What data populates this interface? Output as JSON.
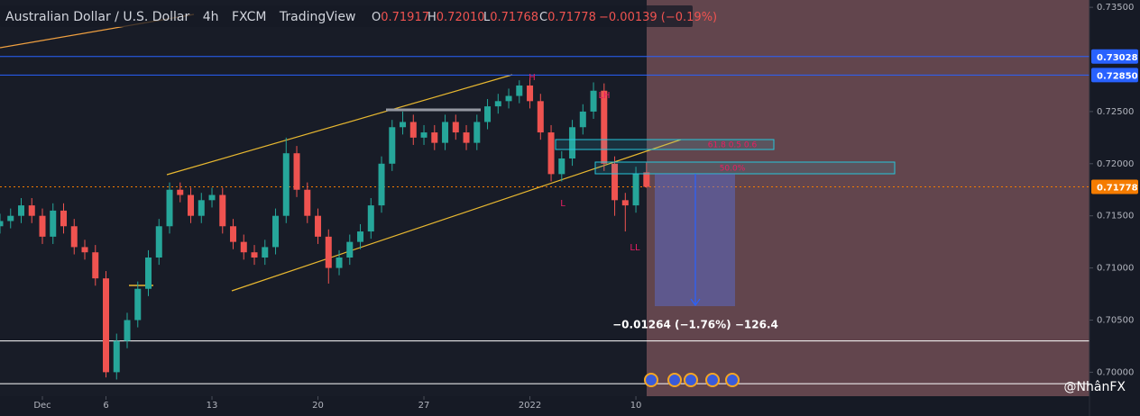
{
  "chart_data": {
    "type": "candlestick",
    "title": "Australian Dollar / U.S. Dollar",
    "interval": "4h",
    "exchange": "FXCM",
    "source": "TradingView",
    "ohlc_header": [
      {
        "key": "O",
        "text": "0.71917"
      },
      {
        "key": "H",
        "text": "0.72010"
      },
      {
        "key": "L",
        "text": "0.71768"
      },
      {
        "key": "C",
        "text": "0.71778"
      }
    ],
    "change_text": "−0.00139 (−0.19%)",
    "x": [
      -2,
      -1.5,
      -1,
      -0.5,
      0,
      0.5,
      1,
      1.5,
      2,
      2.5,
      3,
      3.5,
      4,
      4.5,
      5,
      5.5,
      6,
      6.5,
      7,
      7.5,
      8,
      8.5,
      9,
      9.5,
      10,
      10.5,
      11,
      11.5,
      12,
      12.5,
      13,
      13.5,
      14,
      14.5,
      15,
      15.5,
      16,
      16.5,
      17,
      17.5,
      18,
      18.5,
      19,
      19.5,
      20,
      20.5,
      21,
      21.5,
      22,
      22.5,
      23,
      23.5,
      24,
      24.5,
      25,
      25.5,
      26,
      26.5,
      27,
      27.5,
      28,
      28.5
    ],
    "open": [
      0.714,
      0.7145,
      0.715,
      0.716,
      0.715,
      0.713,
      0.7155,
      0.714,
      0.712,
      0.7115,
      0.709,
      0.7,
      0.703,
      0.705,
      0.708,
      0.711,
      0.714,
      0.7175,
      0.717,
      0.715,
      0.7165,
      0.717,
      0.714,
      0.7125,
      0.7115,
      0.711,
      0.712,
      0.715,
      0.721,
      0.7175,
      0.715,
      0.713,
      0.71,
      0.711,
      0.7125,
      0.7135,
      0.716,
      0.72,
      0.7235,
      0.724,
      0.7225,
      0.723,
      0.722,
      0.724,
      0.723,
      0.722,
      0.724,
      0.7255,
      0.726,
      0.7265,
      0.7275,
      0.726,
      0.723,
      0.719,
      0.7205,
      0.7235,
      0.725,
      0.727,
      0.72,
      0.7165,
      0.716,
      0.71917
    ],
    "high": [
      0.7152,
      0.7157,
      0.7167,
      0.7167,
      0.7157,
      0.7162,
      0.7162,
      0.7147,
      0.7127,
      0.7122,
      0.7097,
      0.7037,
      0.7057,
      0.7087,
      0.7117,
      0.7147,
      0.7182,
      0.7182,
      0.7177,
      0.7172,
      0.7177,
      0.7177,
      0.7147,
      0.7132,
      0.7122,
      0.7127,
      0.7157,
      0.7225,
      0.7217,
      0.7182,
      0.7157,
      0.7137,
      0.7117,
      0.7132,
      0.7142,
      0.7167,
      0.7207,
      0.7242,
      0.725,
      0.7247,
      0.7237,
      0.7237,
      0.7247,
      0.7247,
      0.7237,
      0.7247,
      0.7262,
      0.7267,
      0.7272,
      0.728,
      0.7282,
      0.7267,
      0.7237,
      0.7212,
      0.7242,
      0.7257,
      0.7278,
      0.7277,
      0.7207,
      0.7172,
      0.7197,
      0.7201
    ],
    "low": [
      0.7133,
      0.7138,
      0.7143,
      0.7143,
      0.7123,
      0.7123,
      0.7133,
      0.7113,
      0.7108,
      0.7083,
      0.6995,
      0.6993,
      0.7023,
      0.7043,
      0.7073,
      0.7103,
      0.7133,
      0.7163,
      0.7143,
      0.7143,
      0.7158,
      0.7133,
      0.7118,
      0.7108,
      0.7103,
      0.7103,
      0.7113,
      0.7143,
      0.7168,
      0.7143,
      0.7123,
      0.7085,
      0.7093,
      0.7103,
      0.7118,
      0.7128,
      0.7153,
      0.7193,
      0.7228,
      0.7218,
      0.7218,
      0.7213,
      0.7213,
      0.7223,
      0.7213,
      0.7213,
      0.7233,
      0.7248,
      0.7253,
      0.7258,
      0.7253,
      0.7223,
      0.7183,
      0.7183,
      0.7198,
      0.7228,
      0.7243,
      0.7193,
      0.715,
      0.7135,
      0.7153,
      0.71768
    ],
    "close": [
      0.7145,
      0.715,
      0.716,
      0.715,
      0.713,
      0.7155,
      0.714,
      0.712,
      0.7115,
      0.709,
      0.7,
      0.703,
      0.705,
      0.708,
      0.711,
      0.714,
      0.7175,
      0.717,
      0.715,
      0.7165,
      0.717,
      0.714,
      0.7125,
      0.7115,
      0.711,
      0.712,
      0.715,
      0.721,
      0.7175,
      0.715,
      0.713,
      0.71,
      0.711,
      0.7125,
      0.7135,
      0.716,
      0.72,
      0.7235,
      0.724,
      0.7225,
      0.723,
      0.722,
      0.724,
      0.723,
      0.722,
      0.724,
      0.7255,
      0.726,
      0.7265,
      0.7275,
      0.726,
      0.723,
      0.719,
      0.7205,
      0.7235,
      0.725,
      0.727,
      0.72,
      0.7165,
      0.716,
      0.719,
      0.71778
    ],
    "up_color": "#26a69a",
    "down_color": "#ef5350",
    "xlim": [
      -2,
      49.4
    ],
    "xticks": [
      {
        "value": 0,
        "label": "Dec"
      },
      {
        "value": 3,
        "label": "6"
      },
      {
        "value": 8,
        "label": "13"
      },
      {
        "value": 13,
        "label": "20"
      },
      {
        "value": 18,
        "label": "27"
      },
      {
        "value": 23,
        "label": "2022"
      },
      {
        "value": 28,
        "label": "10"
      }
    ],
    "ylim": [
      0.6977,
      0.7357
    ],
    "yticks": [
      {
        "value": 0.7,
        "label": "0.70000"
      },
      {
        "value": 0.705,
        "label": "0.70500"
      },
      {
        "value": 0.71,
        "label": "0.71000"
      },
      {
        "value": 0.715,
        "label": "0.71500"
      },
      {
        "value": 0.72,
        "label": "0.72000"
      },
      {
        "value": 0.725,
        "label": "0.72500"
      },
      {
        "value": 0.735,
        "label": "0.73500"
      }
    ],
    "price_lines": [
      {
        "value": 0.73028,
        "label": "0.73028",
        "color": "#2962ff"
      },
      {
        "value": 0.7285,
        "label": "0.72850",
        "color": "#2962ff"
      },
      {
        "value": 0.71778,
        "label": "0.71778",
        "color": "#f57c00"
      }
    ],
    "levels": [
      0.703,
      0.6989
    ],
    "annotations": [
      "H",
      "LH",
      "L",
      "LL",
      "61.8 0.5 0.6",
      "50.0%"
    ],
    "measure_label": "−0.01264 (−1.76%) −126.4",
    "watermark": "@NhânFX"
  }
}
